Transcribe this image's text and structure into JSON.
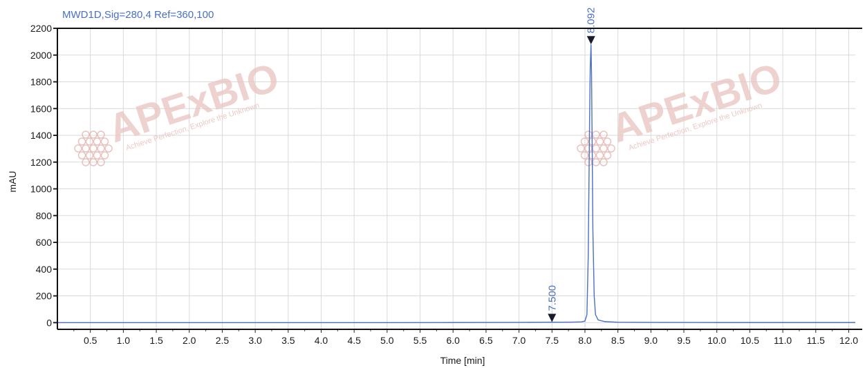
{
  "chart_data": {
    "type": "line",
    "title": "MWD1D,Sig=280,4  Ref=360,100",
    "xlabel": "Time [min]",
    "ylabel": "mAU",
    "xlim": [
      0,
      12.1
    ],
    "ylim": [
      -50,
      2200
    ],
    "x_ticks": [
      "0.5",
      "1.0",
      "1.5",
      "2.0",
      "2.5",
      "3.0",
      "3.5",
      "4.0",
      "4.5",
      "5.0",
      "5.5",
      "6.0",
      "6.5",
      "7.0",
      "7.5",
      "8.0",
      "8.5",
      "9.0",
      "9.5",
      "10.0",
      "10.5",
      "11.0",
      "11.5",
      "12.0"
    ],
    "y_ticks": [
      "0",
      "200",
      "400",
      "600",
      "800",
      "1000",
      "1200",
      "1400",
      "1600",
      "1800",
      "2000",
      "2200"
    ],
    "grid": true,
    "series": [
      {
        "x": [
          0,
          0.5,
          1.0,
          2.0,
          3.0,
          4.0,
          5.0,
          6.0,
          7.0,
          7.4,
          7.5,
          7.6,
          7.8,
          7.95,
          8.0,
          8.03,
          8.05,
          8.07,
          8.08,
          8.092,
          8.1,
          8.11,
          8.12,
          8.14,
          8.16,
          8.2,
          8.3,
          8.5,
          9.0,
          10.0,
          11.0,
          12.0,
          12.1
        ],
        "y": [
          0,
          0,
          0,
          0,
          0,
          0,
          0,
          1,
          2,
          3,
          4,
          3,
          4,
          6,
          12,
          60,
          500,
          1500,
          1900,
          2080,
          1850,
          1300,
          700,
          200,
          60,
          20,
          8,
          3,
          2,
          1,
          1,
          1,
          1
        ]
      }
    ],
    "peaks": [
      {
        "time": 7.5,
        "label": "7.500",
        "y": 4
      },
      {
        "time": 8.092,
        "label": "8.092",
        "y": 2080
      }
    ]
  },
  "colors": {
    "trace": "#4a6fc4",
    "marker": "#1a1a2e",
    "grid": "#d9d9d9",
    "watermark": "#e0a9a4",
    "watermark_text": "#e9c4c0"
  },
  "watermark": {
    "brand": "APExBIO",
    "tagline": "Achieve Perfection, Explore the Unknown"
  }
}
